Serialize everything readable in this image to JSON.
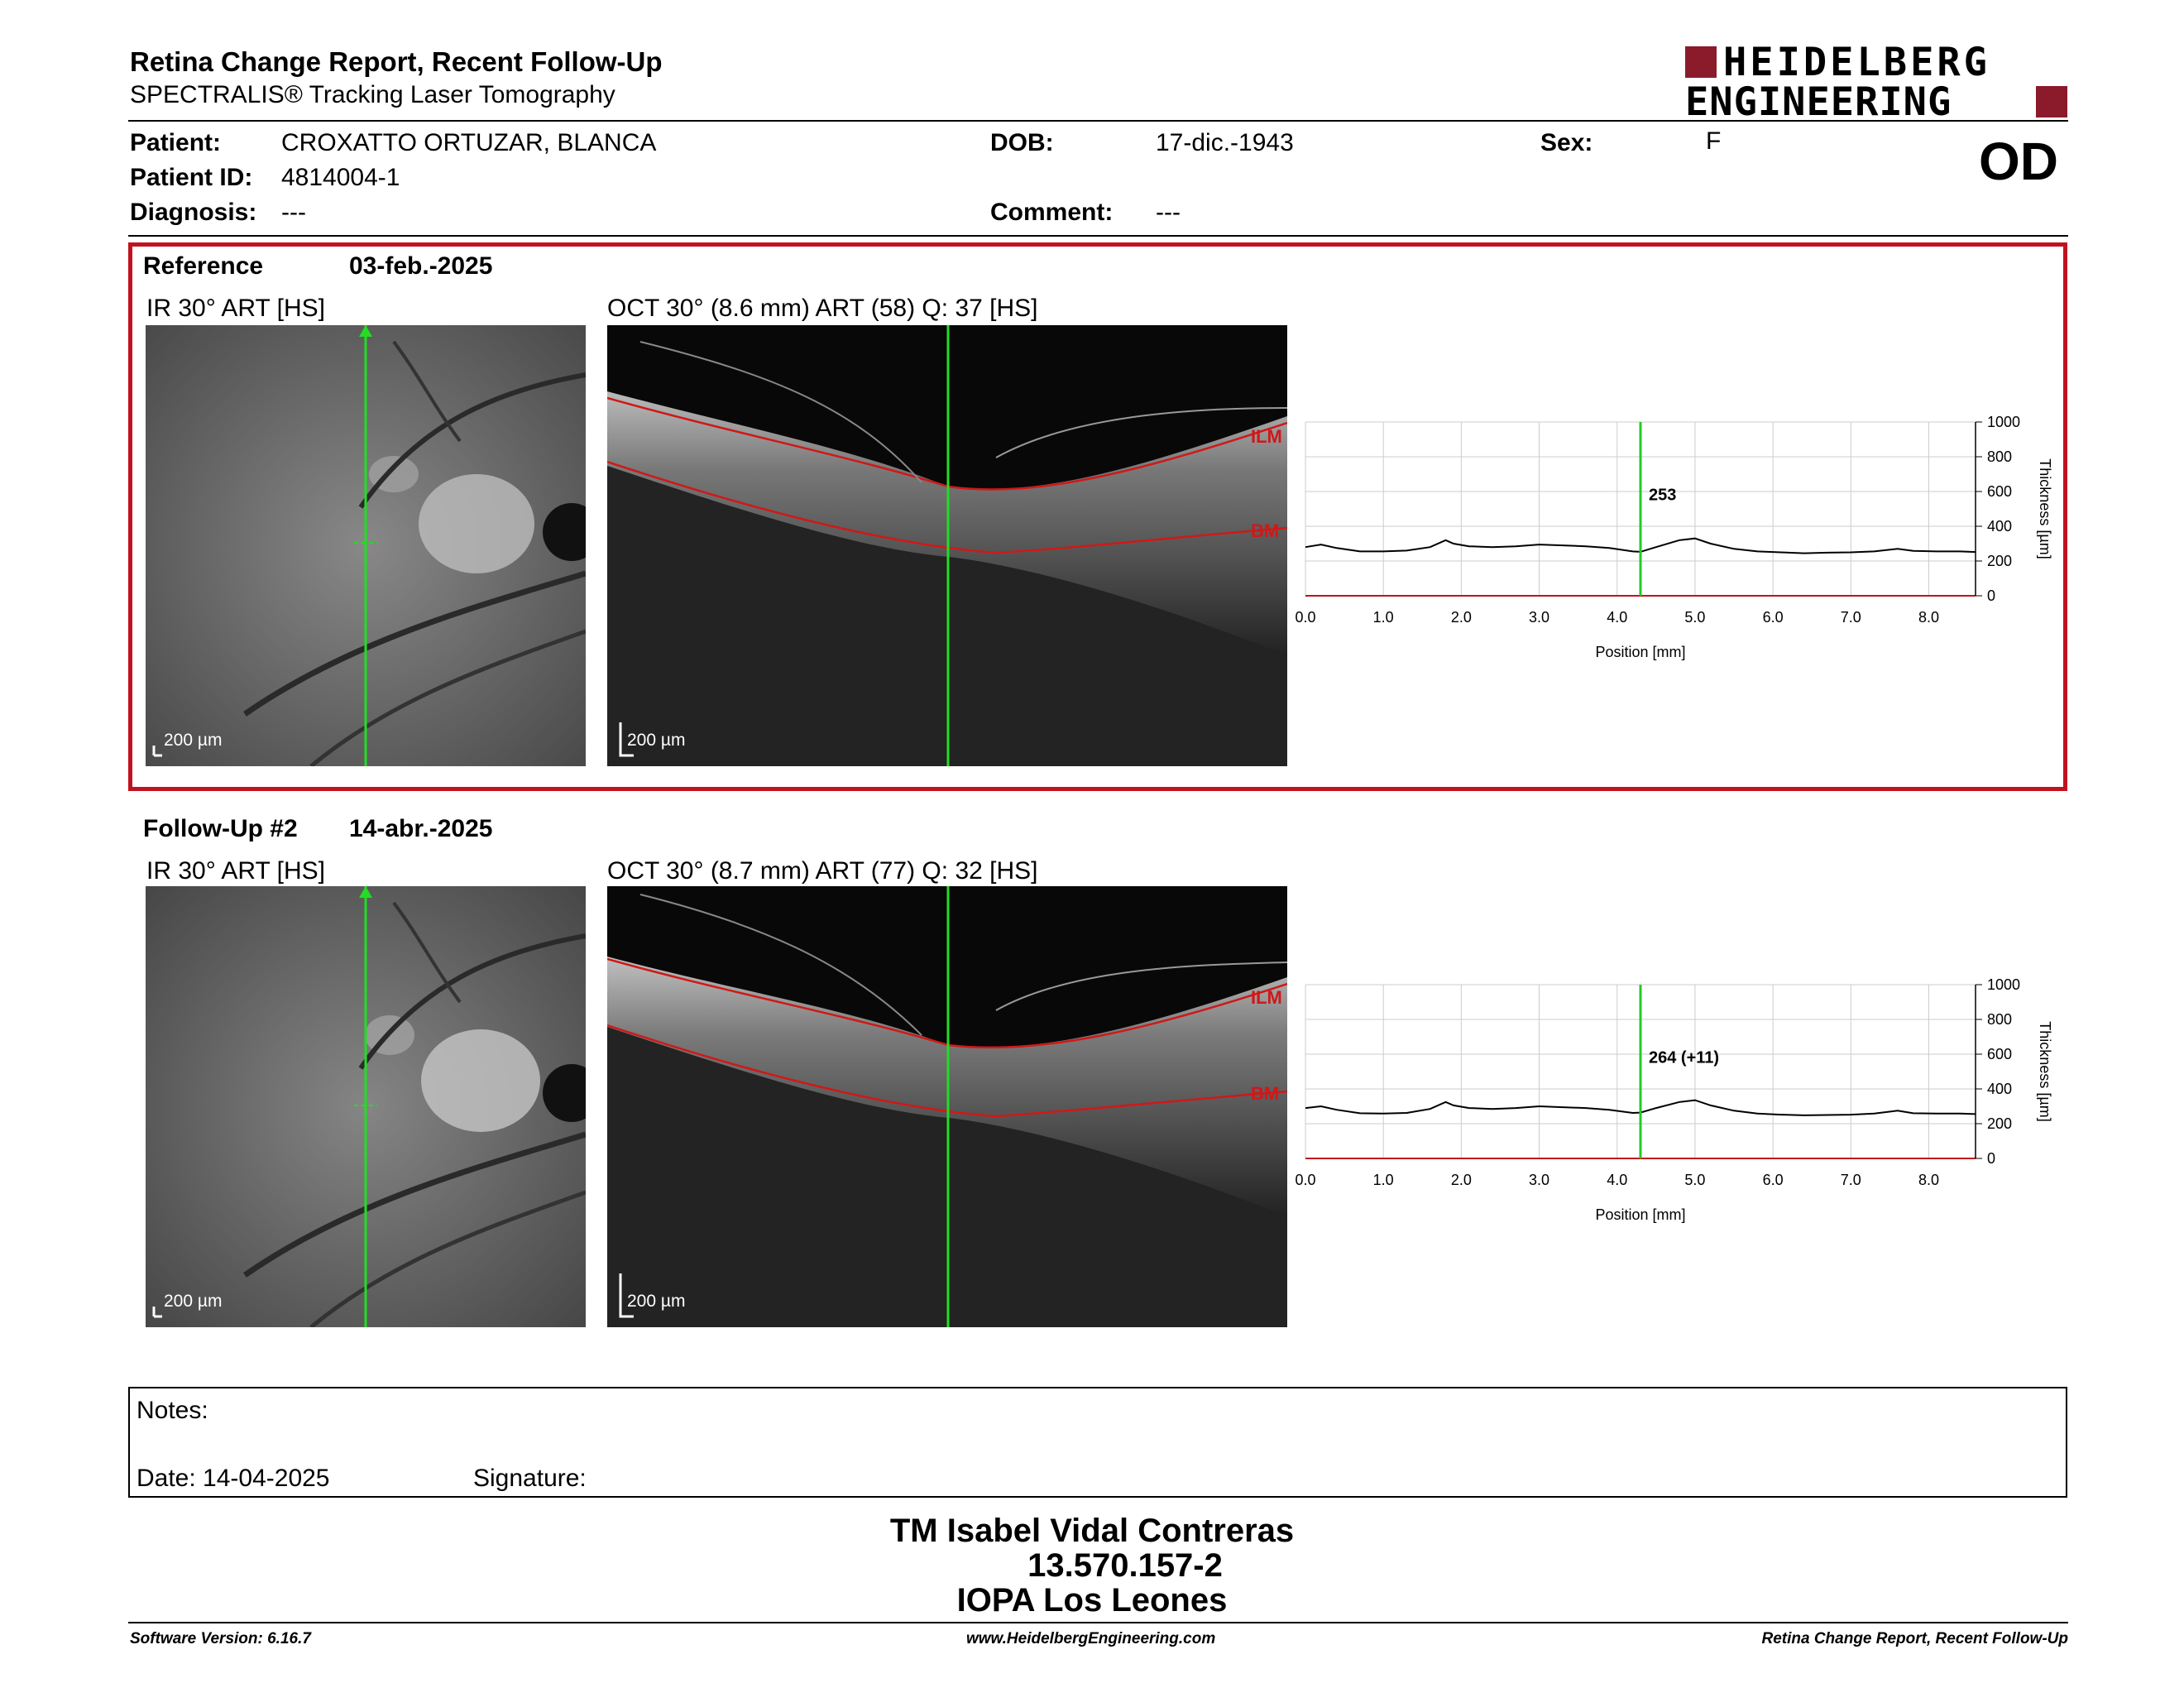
{
  "header": {
    "title": "Retina Change Report, Recent Follow-Up",
    "subtitle": "SPECTRALIS® Tracking Laser Tomography",
    "logo_line1": "HEIDELBERG",
    "logo_line2": "ENGINEERING",
    "brand_color": "#8b1a2b"
  },
  "patient": {
    "patient_label": "Patient:",
    "patient_value": "CROXATTO ORTUZAR, BLANCA",
    "id_label": "Patient ID:",
    "id_value": "4814004-1",
    "diagnosis_label": "Diagnosis:",
    "diagnosis_value": "---",
    "dob_label": "DOB:",
    "dob_value": "17-dic.-1943",
    "comment_label": "Comment:",
    "comment_value": "---",
    "sex_label": "Sex:",
    "sex_value": "F",
    "eye": "OD"
  },
  "reference": {
    "label": "Reference",
    "date": "03-feb.-2025",
    "ir_caption": "IR 30° ART [HS]",
    "oct_caption": "OCT 30° (8.6 mm) ART (58) Q: 37 [HS]",
    "scale_ir": "200 µm",
    "scale_oct": "200 µm",
    "layer_top": "ILM",
    "layer_bottom": "BM",
    "marker_value": "253",
    "box_color": "#c1121f"
  },
  "followup": {
    "label": "Follow-Up #2",
    "date": "14-abr.-2025",
    "ir_caption": "IR 30° ART [HS]",
    "oct_caption": "OCT 30° (8.7 mm) ART (77) Q: 32 [HS]",
    "scale_ir": "200 µm",
    "scale_oct": "200 µm",
    "layer_top": "ILM",
    "layer_bottom": "BM",
    "marker_value": "264 (+11)"
  },
  "chart_data": [
    {
      "type": "line",
      "xlabel": "Position [mm]",
      "ylabel": "Thickness [µm]",
      "xlim": [
        0,
        8.6
      ],
      "ylim": [
        0,
        1000
      ],
      "xticks": [
        "0.0",
        "1.0",
        "2.0",
        "3.0",
        "4.0",
        "5.0",
        "6.0",
        "7.0",
        "8.0"
      ],
      "yticks": [
        "0",
        "200",
        "400",
        "600",
        "800",
        "1000"
      ],
      "grid": true,
      "marker_x": 4.3,
      "marker_label": "253",
      "series": [
        {
          "values_x": [
            0,
            0.2,
            0.4,
            0.7,
            1.0,
            1.3,
            1.6,
            1.8,
            1.9,
            2.1,
            2.4,
            2.7,
            3.0,
            3.3,
            3.6,
            3.9,
            4.2,
            4.3,
            4.5,
            4.8,
            5.0,
            5.2,
            5.5,
            5.8,
            6.1,
            6.4,
            6.7,
            7.0,
            7.3,
            7.6,
            7.8,
            8.1,
            8.4,
            8.6
          ],
          "values_y": [
            280,
            295,
            275,
            255,
            255,
            260,
            280,
            320,
            300,
            285,
            280,
            285,
            295,
            290,
            285,
            275,
            255,
            253,
            280,
            320,
            330,
            300,
            270,
            255,
            250,
            245,
            248,
            250,
            255,
            270,
            258,
            255,
            255,
            252
          ]
        }
      ],
      "line_color": "#000000",
      "marker_color": "#22cc22"
    },
    {
      "type": "line",
      "xlabel": "Position [mm]",
      "ylabel": "Thickness [µm]",
      "xlim": [
        0,
        8.6
      ],
      "ylim": [
        0,
        1000
      ],
      "xticks": [
        "0.0",
        "1.0",
        "2.0",
        "3.0",
        "4.0",
        "5.0",
        "6.0",
        "7.0",
        "8.0"
      ],
      "yticks": [
        "0",
        "200",
        "400",
        "600",
        "800",
        "1000"
      ],
      "grid": true,
      "marker_x": 4.3,
      "marker_label": "264 (+11)",
      "series": [
        {
          "values_x": [
            0,
            0.2,
            0.4,
            0.7,
            1.0,
            1.3,
            1.6,
            1.8,
            1.9,
            2.1,
            2.4,
            2.7,
            3.0,
            3.3,
            3.6,
            3.9,
            4.2,
            4.3,
            4.5,
            4.8,
            5.0,
            5.2,
            5.5,
            5.8,
            6.1,
            6.4,
            6.7,
            7.0,
            7.3,
            7.6,
            7.8,
            8.1,
            8.4,
            8.6
          ],
          "values_y": [
            290,
            300,
            280,
            260,
            258,
            262,
            285,
            325,
            305,
            290,
            285,
            290,
            300,
            295,
            290,
            280,
            262,
            264,
            290,
            325,
            335,
            305,
            275,
            258,
            252,
            248,
            250,
            252,
            258,
            275,
            260,
            258,
            258,
            255
          ]
        }
      ],
      "line_color": "#000000",
      "marker_color": "#22cc22"
    }
  ],
  "notes": {
    "label": "Notes:",
    "date_label": "Date: 14-04-2025",
    "signature_label": "Signature:"
  },
  "signer": {
    "name": "TM Isabel Vidal Contreras",
    "id": "13.570.157-2",
    "org": "IOPA Los Leones"
  },
  "footer": {
    "software": "Software Version: 6.16.7",
    "website": "www.HeidelbergEngineering.com",
    "report": "Retina Change Report, Recent Follow-Up"
  }
}
